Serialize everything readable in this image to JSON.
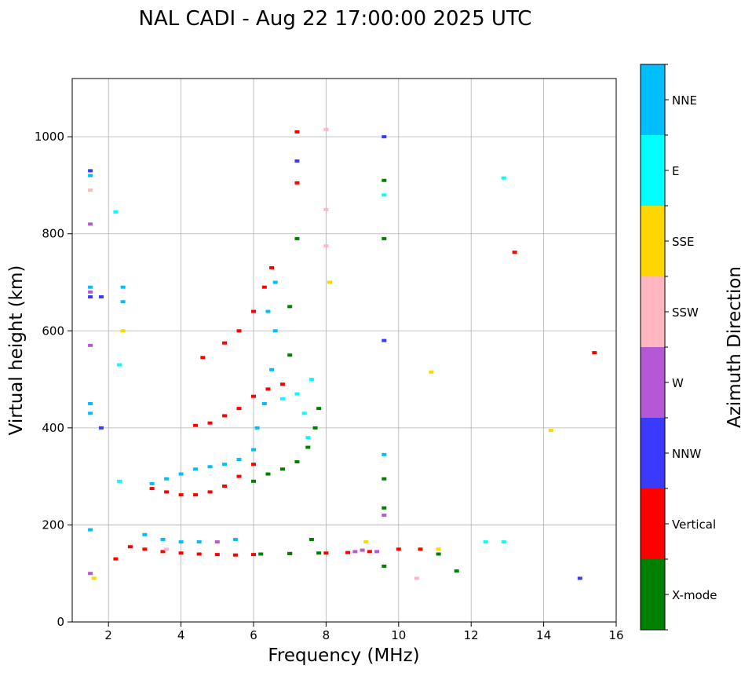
{
  "chart_data": {
    "type": "scatter",
    "title": "NAL CADI - Aug 22 17:00:00 2025 UTC",
    "xlabel": "Frequency (MHz)",
    "ylabel": "Virtual height (km)",
    "xlim": [
      1,
      16
    ],
    "ylim": [
      0,
      1120
    ],
    "xticks": [
      2,
      4,
      6,
      8,
      10,
      12,
      14,
      16
    ],
    "yticks": [
      0,
      200,
      400,
      600,
      800,
      1000
    ],
    "grid": true,
    "colorbar": {
      "label": "Azimuth Direction",
      "categories": [
        {
          "name": "X-mode",
          "color": "#008000"
        },
        {
          "name": "Vertical",
          "color": "#ff0000"
        },
        {
          "name": "NNW",
          "color": "#3a3aff"
        },
        {
          "name": "W",
          "color": "#b558d6"
        },
        {
          "name": "SSW",
          "color": "#ffb6c1"
        },
        {
          "name": "SSE",
          "color": "#ffd700"
        },
        {
          "name": "E",
          "color": "#00ffff"
        },
        {
          "name": "NNE",
          "color": "#00bfff"
        }
      ]
    },
    "series": [
      {
        "name": "Vertical",
        "points": [
          [
            2.2,
            130
          ],
          [
            2.6,
            155
          ],
          [
            3.0,
            150
          ],
          [
            3.5,
            145
          ],
          [
            4.0,
            142
          ],
          [
            4.5,
            140
          ],
          [
            5.0,
            139
          ],
          [
            5.5,
            138
          ],
          [
            6.0,
            139
          ],
          [
            7.0,
            141
          ],
          [
            8.0,
            142
          ],
          [
            8.6,
            143
          ],
          [
            9.2,
            145
          ],
          [
            3.2,
            275
          ],
          [
            3.6,
            268
          ],
          [
            4.0,
            262
          ],
          [
            4.4,
            262
          ],
          [
            4.8,
            268
          ],
          [
            5.2,
            280
          ],
          [
            5.6,
            300
          ],
          [
            6.0,
            325
          ],
          [
            4.4,
            405
          ],
          [
            4.8,
            410
          ],
          [
            5.2,
            425
          ],
          [
            5.6,
            440
          ],
          [
            6.0,
            465
          ],
          [
            6.4,
            480
          ],
          [
            6.8,
            490
          ],
          [
            4.6,
            545
          ],
          [
            5.2,
            575
          ],
          [
            5.6,
            600
          ],
          [
            6.0,
            640
          ],
          [
            6.3,
            690
          ],
          [
            6.5,
            730
          ],
          [
            7.2,
            1010
          ],
          [
            7.2,
            905
          ],
          [
            10.0,
            150
          ],
          [
            10.6,
            150
          ],
          [
            13.2,
            762
          ],
          [
            15.4,
            555
          ]
        ]
      },
      {
        "name": "X-mode",
        "points": [
          [
            6.0,
            290
          ],
          [
            6.4,
            305
          ],
          [
            6.8,
            315
          ],
          [
            7.2,
            330
          ],
          [
            7.5,
            360
          ],
          [
            7.7,
            400
          ],
          [
            7.8,
            440
          ],
          [
            7.0,
            550
          ],
          [
            7.0,
            650
          ],
          [
            7.2,
            790
          ],
          [
            6.2,
            140
          ],
          [
            7.0,
            141
          ],
          [
            7.8,
            142
          ],
          [
            9.6,
            790
          ],
          [
            9.6,
            910
          ],
          [
            9.6,
            295
          ],
          [
            9.6,
            235
          ],
          [
            9.6,
            115
          ],
          [
            11.1,
            140
          ],
          [
            11.6,
            105
          ],
          [
            7.6,
            170
          ]
        ]
      },
      {
        "name": "NNE",
        "points": [
          [
            3.2,
            285
          ],
          [
            3.6,
            295
          ],
          [
            4.0,
            305
          ],
          [
            4.4,
            315
          ],
          [
            4.8,
            320
          ],
          [
            5.2,
            325
          ],
          [
            5.6,
            335
          ],
          [
            6.0,
            355
          ],
          [
            6.1,
            400
          ],
          [
            6.3,
            450
          ],
          [
            6.5,
            520
          ],
          [
            6.6,
            600
          ],
          [
            6.4,
            640
          ],
          [
            6.6,
            700
          ],
          [
            1.5,
            920
          ],
          [
            1.5,
            690
          ],
          [
            1.5,
            450
          ],
          [
            1.5,
            430
          ],
          [
            1.5,
            190
          ],
          [
            2.4,
            690
          ],
          [
            2.4,
            660
          ],
          [
            3.0,
            180
          ],
          [
            3.5,
            170
          ],
          [
            4.0,
            165
          ],
          [
            4.5,
            165
          ],
          [
            5.5,
            170
          ],
          [
            9.6,
            345
          ]
        ]
      },
      {
        "name": "E",
        "points": [
          [
            7.2,
            470
          ],
          [
            7.4,
            430
          ],
          [
            7.5,
            380
          ],
          [
            7.6,
            500
          ],
          [
            6.8,
            460
          ],
          [
            9.6,
            880
          ],
          [
            12.4,
            165
          ],
          [
            12.9,
            165
          ],
          [
            12.9,
            915
          ],
          [
            2.2,
            845
          ],
          [
            2.3,
            290
          ],
          [
            2.3,
            530
          ]
        ]
      },
      {
        "name": "W",
        "points": [
          [
            1.5,
            820
          ],
          [
            1.5,
            680
          ],
          [
            1.5,
            570
          ],
          [
            1.5,
            100
          ],
          [
            8.8,
            145
          ],
          [
            9.0,
            148
          ],
          [
            9.4,
            145
          ],
          [
            5.0,
            165
          ],
          [
            9.6,
            220
          ]
        ]
      },
      {
        "name": "NNW",
        "points": [
          [
            1.5,
            930
          ],
          [
            1.5,
            670
          ],
          [
            1.8,
            670
          ],
          [
            1.8,
            400
          ],
          [
            9.6,
            580
          ],
          [
            9.6,
            1000
          ],
          [
            7.2,
            950
          ],
          [
            15.0,
            90
          ]
        ]
      },
      {
        "name": "SSW",
        "points": [
          [
            8.0,
            1015
          ],
          [
            8.0,
            850
          ],
          [
            8.0,
            775
          ],
          [
            1.5,
            890
          ],
          [
            10.5,
            90
          ],
          [
            3.6,
            150
          ]
        ]
      },
      {
        "name": "SSE",
        "points": [
          [
            1.6,
            90
          ],
          [
            2.4,
            600
          ],
          [
            8.1,
            700
          ],
          [
            9.1,
            165
          ],
          [
            10.9,
            515
          ],
          [
            14.2,
            395
          ],
          [
            11.1,
            150
          ]
        ]
      }
    ]
  }
}
